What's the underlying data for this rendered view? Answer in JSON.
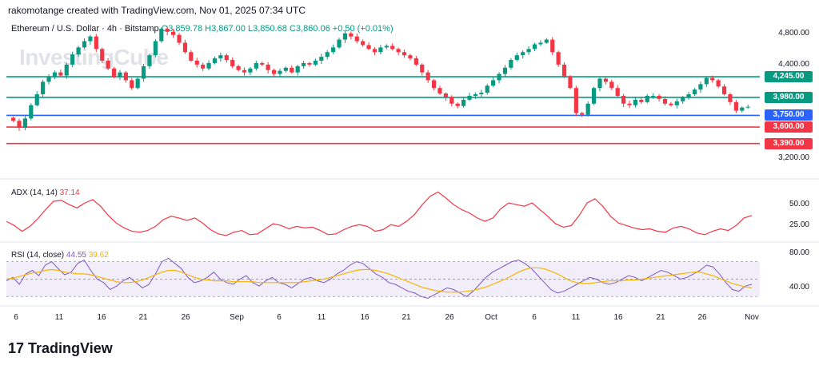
{
  "header": {
    "created_by": "rakomotange created with TradingView.com, Nov 01, 2025 07:34 UTC",
    "symbol": "Ethereum / U.S. Dollar · 4h · Bitstamp",
    "open": "O3,859.78",
    "high": "H3,867.00",
    "low": "L3,850.68",
    "close": "C3,860.06",
    "change": "+0.50 (+0.01%)"
  },
  "watermark": "InvestingCube",
  "footer": {
    "logo_text": "TradingView"
  },
  "colors": {
    "up": "#089981",
    "down": "#f23645",
    "support_green": "#089981",
    "blue": "#2962ff",
    "red": "#f23645",
    "rsi": "#7e57c2",
    "rsi_ma": "#f4b400"
  },
  "chart_data": [
    {
      "type": "candlestick",
      "title": "Ethereum / U.S. Dollar · 4h · Bitstamp",
      "ylim": [
        3100,
        4900
      ],
      "y_ticks": [
        "4,800.00",
        "4,400.00",
        "3,200.00"
      ],
      "x_ticks": [
        "6",
        "11",
        "16",
        "21",
        "26",
        "Sep",
        "6",
        "11",
        "16",
        "21",
        "26",
        "Oct",
        "6",
        "11",
        "16",
        "21",
        "26",
        "Nov"
      ],
      "approx_closes": [
        3680,
        3590,
        3710,
        3880,
        4020,
        4180,
        4240,
        4300,
        4260,
        4400,
        4530,
        4620,
        4700,
        4760,
        4600,
        4450,
        4350,
        4240,
        4300,
        4200,
        4100,
        4220,
        4380,
        4520,
        4700,
        4860,
        4820,
        4780,
        4680,
        4560,
        4450,
        4400,
        4350,
        4420,
        4480,
        4520,
        4460,
        4380,
        4330,
        4300,
        4350,
        4420,
        4400,
        4330,
        4280,
        4320,
        4360,
        4300,
        4380,
        4420,
        4400,
        4450,
        4500,
        4560,
        4620,
        4720,
        4800,
        4760,
        4700,
        4650,
        4600,
        4560,
        4620,
        4640,
        4600,
        4560,
        4520,
        4480,
        4400,
        4300,
        4200,
        4100,
        4030,
        3980,
        3900,
        3870,
        3950,
        4000,
        4020,
        4040,
        4130,
        4200,
        4280,
        4360,
        4460,
        4520,
        4560,
        4600,
        4660,
        4680,
        4720,
        4560,
        4400,
        4250,
        4100,
        3780,
        3760,
        3900,
        4100,
        4220,
        4180,
        4100,
        4000,
        3900,
        3880,
        3950,
        3920,
        4000,
        4000,
        3960,
        3900,
        3880,
        3930,
        3980,
        4020,
        4080,
        4150,
        4230,
        4200,
        4120,
        4020,
        3920,
        3810,
        3850,
        3860
      ],
      "levels": [
        {
          "label": "4,245.00",
          "value": 4245,
          "color": "#089981"
        },
        {
          "label": "3,980.00",
          "value": 3980,
          "color": "#089981"
        },
        {
          "label": "3,750.00",
          "value": 3750,
          "color": "#2962ff"
        },
        {
          "label": "3,600.00",
          "value": 3600,
          "color": "#f23645"
        },
        {
          "label": "3,390.00",
          "value": 3390,
          "color": "#f23645"
        }
      ]
    },
    {
      "type": "line",
      "title": "ADX (14, 14)",
      "value_label": "37.14",
      "y_ticks": [
        "50.00",
        "25.00"
      ],
      "ylim": [
        10,
        75
      ],
      "series": [
        {
          "values": [
            30,
            25,
            18,
            24,
            33,
            44,
            54,
            55,
            50,
            46,
            52,
            56,
            48,
            37,
            28,
            22,
            18,
            17,
            19,
            24,
            32,
            36,
            34,
            31,
            34,
            28,
            20,
            15,
            13,
            17,
            19,
            14,
            15,
            21,
            27,
            25,
            21,
            24,
            22,
            23,
            19,
            14,
            15,
            20,
            24,
            26,
            24,
            18,
            20,
            26,
            24,
            30,
            38,
            50,
            60,
            65,
            58,
            50,
            44,
            40,
            34,
            30,
            34,
            45,
            52,
            50,
            48,
            52,
            44,
            36,
            27,
            23,
            25,
            37,
            52,
            57,
            48,
            36,
            28,
            25,
            22,
            20,
            21,
            18,
            17,
            22,
            24,
            21,
            16,
            14,
            18,
            21,
            19,
            25,
            34,
            37
          ]
        }
      ]
    },
    {
      "type": "line",
      "title": "RSI (14, close)",
      "value_labels": [
        "44.55",
        "39.62"
      ],
      "y_ticks": [
        "80.00",
        "40.00"
      ],
      "ylim": [
        22,
        88
      ],
      "series": [
        {
          "name": "RSI",
          "values": [
            48,
            52,
            44,
            56,
            60,
            54,
            66,
            70,
            62,
            55,
            58,
            68,
            72,
            60,
            50,
            46,
            38,
            42,
            48,
            52,
            46,
            40,
            44,
            56,
            70,
            74,
            68,
            62,
            52,
            46,
            48,
            52,
            58,
            50,
            46,
            44,
            50,
            54,
            46,
            42,
            48,
            52,
            46,
            44,
            40,
            45,
            50,
            52,
            48,
            46,
            50,
            56,
            60,
            66,
            70,
            68,
            62,
            56,
            52,
            46,
            44,
            40,
            36,
            34,
            30,
            28,
            32,
            36,
            40,
            38,
            34,
            30,
            36,
            44,
            52,
            58,
            62,
            66,
            70,
            72,
            68,
            62,
            54,
            46,
            38,
            34,
            36,
            40,
            44,
            48,
            52,
            50,
            46,
            44,
            46,
            50,
            54,
            52,
            48,
            52,
            56,
            60,
            58,
            54,
            50,
            52,
            56,
            60,
            66,
            64,
            56,
            46,
            38,
            36,
            42,
            44
          ]
        },
        {
          "name": "RSI-based MA",
          "values": [
            50,
            51,
            53,
            55,
            57,
            58,
            60,
            61,
            60,
            58,
            57,
            56,
            56,
            55,
            53,
            51,
            49,
            47,
            46,
            46,
            47,
            49,
            52,
            55,
            58,
            60,
            60,
            58,
            55,
            52,
            50,
            49,
            48,
            48,
            48,
            47,
            47,
            47,
            47,
            46,
            46,
            46,
            46,
            46,
            46,
            46,
            47,
            48,
            49,
            50,
            52,
            54,
            56,
            58,
            60,
            61,
            61,
            60,
            58,
            56,
            53,
            50,
            47,
            44,
            41,
            39,
            37,
            36,
            35,
            35,
            35,
            36,
            37,
            39,
            41,
            44,
            47,
            50,
            54,
            58,
            61,
            63,
            63,
            62,
            59,
            56,
            52,
            48,
            46,
            45,
            45,
            46,
            47,
            48,
            48,
            48,
            49,
            49,
            50,
            51,
            52,
            53,
            54,
            55,
            56,
            57,
            58,
            58,
            56,
            54,
            51,
            48,
            45,
            43,
            41,
            40
          ]
        }
      ]
    }
  ]
}
